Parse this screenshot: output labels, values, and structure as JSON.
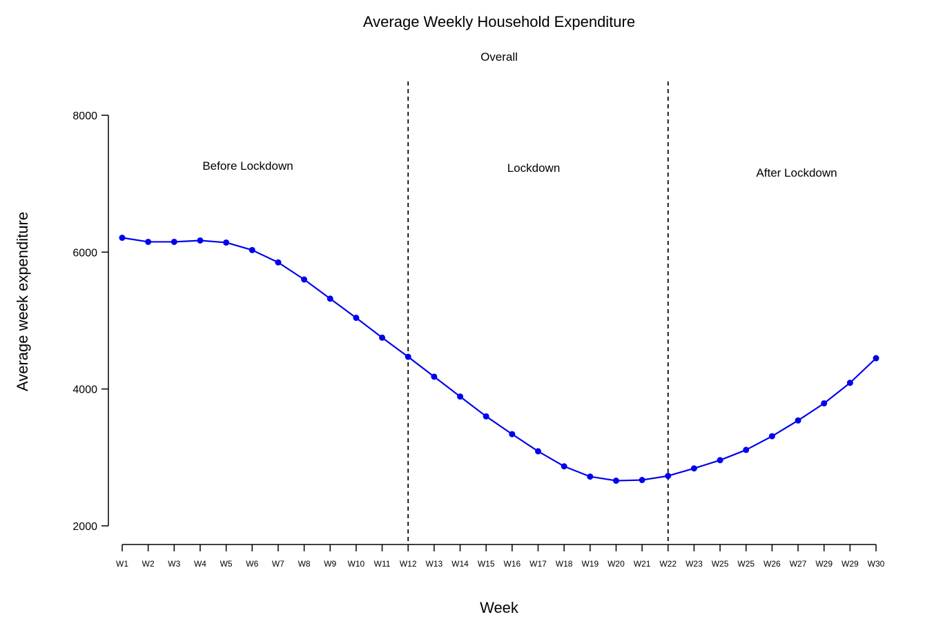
{
  "chart_data": {
    "type": "line",
    "title": "Average Weekly Household Expenditure",
    "subtitle": "Overall",
    "xlabel": "Week",
    "ylabel": "Average week expenditure",
    "categories": [
      "W1",
      "W2",
      "W3",
      "W4",
      "W5",
      "W6",
      "W7",
      "W8",
      "W9",
      "W10",
      "W11",
      "W12",
      "W13",
      "W14",
      "W15",
      "W16",
      "W17",
      "W18",
      "W19",
      "W20",
      "W21",
      "W22",
      "W23",
      "W25",
      "W25",
      "W26",
      "W27",
      "W29",
      "W29",
      "W30"
    ],
    "series": [
      {
        "color": "#0000ee",
        "values": [
          6210,
          6150,
          6150,
          6170,
          6140,
          6030,
          5850,
          5600,
          5320,
          5040,
          4750,
          4470,
          4180,
          3890,
          3600,
          3340,
          3090,
          2870,
          2720,
          2660,
          2670,
          2730,
          2840,
          2960,
          3110,
          3310,
          3540,
          3790,
          4090,
          4450
        ]
      }
    ],
    "y_ticks": [
      "2000",
      "4000",
      "6000",
      "8000"
    ],
    "ylim": [
      2000,
      8000
    ],
    "vlines": [
      {
        "at_category": "W12",
        "style": "dashed"
      },
      {
        "at_category": "W22",
        "style": "dashed"
      }
    ],
    "annotations": [
      {
        "text": "Before Lockdown"
      },
      {
        "text": "Lockdown"
      },
      {
        "text": "After Lockdown"
      }
    ],
    "grid": false,
    "legend": "none"
  }
}
